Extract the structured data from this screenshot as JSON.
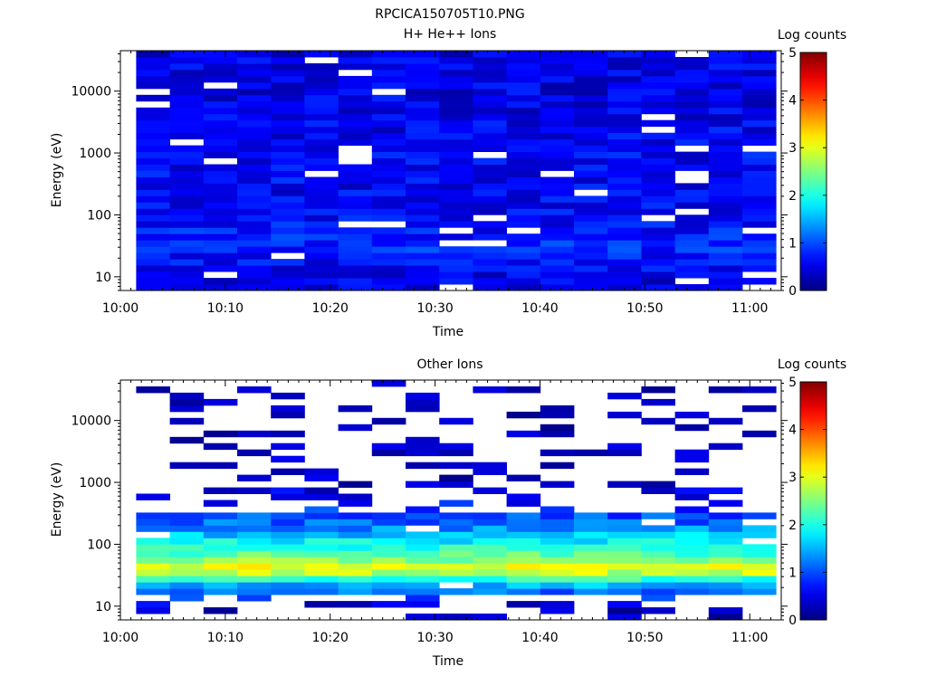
{
  "figure_title": "RPCICA150705T10.PNG",
  "chart_data": [
    {
      "type": "heatmap",
      "title": "H+ He++ Ions",
      "xlabel": "Time",
      "ylabel": "Energy (eV)",
      "yscale": "log",
      "ylim": [
        6,
        45000
      ],
      "xlim": [
        "10:00",
        "11:03"
      ],
      "xticks": [
        "10:00",
        "10:10",
        "10:20",
        "10:30",
        "10:40",
        "10:50",
        "11:00"
      ],
      "yticks": [
        "10",
        "100",
        "1000",
        "10000"
      ],
      "colorbar": {
        "label": "Log counts",
        "range": [
          0,
          5
        ],
        "ticks": [
          "0",
          "1",
          "2",
          "3",
          "4",
          "5"
        ]
      },
      "description": "Low counts (log 0-1) across all energies 6 eV-45 keV for the whole interval, slightly higher near 10-30 eV and around 100 eV",
      "profile_log_counts": [
        {
          "energy": 10,
          "value": 0.5
        },
        {
          "energy": 30,
          "value": 0.8
        },
        {
          "energy": 100,
          "value": 0.6
        },
        {
          "energy": 1000,
          "value": 0.6
        },
        {
          "energy": 10000,
          "value": 0.5
        }
      ],
      "grid": false
    },
    {
      "type": "heatmap",
      "title": "Other Ions",
      "xlabel": "Time",
      "ylabel": "Energy (eV)",
      "yscale": "log",
      "ylim": [
        6,
        45000
      ],
      "xlim": [
        "10:00",
        "11:03"
      ],
      "xticks": [
        "10:00",
        "10:10",
        "10:20",
        "10:30",
        "10:40",
        "10:50",
        "11:00"
      ],
      "yticks": [
        "10",
        "100",
        "1000",
        "10000"
      ],
      "colorbar": {
        "label": "Log counts",
        "range": [
          0,
          5
        ],
        "ticks": [
          "0",
          "1",
          "2",
          "3",
          "4",
          "5"
        ]
      },
      "description": "Intense band at 25-70 eV peaking about log 3, decreasing to about 1 near 300 eV; sparse low counts above 400 eV and below 20 eV",
      "profile_log_counts": [
        {
          "energy": 10,
          "value": 0.3
        },
        {
          "energy": 22,
          "value": 1.5
        },
        {
          "energy": 35,
          "value": 2.8
        },
        {
          "energy": 45,
          "value": 3.0
        },
        {
          "energy": 60,
          "value": 2.4
        },
        {
          "energy": 100,
          "value": 2.0
        },
        {
          "energy": 200,
          "value": 1.2
        },
        {
          "energy": 400,
          "value": 0.8
        },
        {
          "energy": 1000,
          "value": 0.3
        },
        {
          "energy": 10000,
          "value": 0.2
        }
      ],
      "grid": false
    }
  ]
}
